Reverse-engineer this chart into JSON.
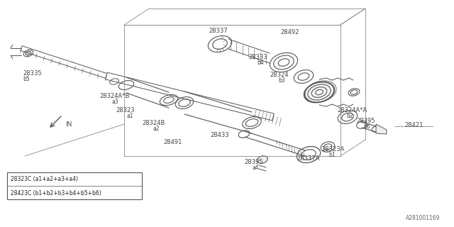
{
  "bg_color": "#ffffff",
  "part_color": "#555555",
  "line_color": "#888888",
  "label_color": "#444444",
  "watermark": "A281001169",
  "legend_lines": [
    "28323C (a1+a2+a3+a4)",
    "28423C (b1+b2+b3+b4+b5+b6)"
  ],
  "lf": 6.0,
  "sf": 5.5
}
